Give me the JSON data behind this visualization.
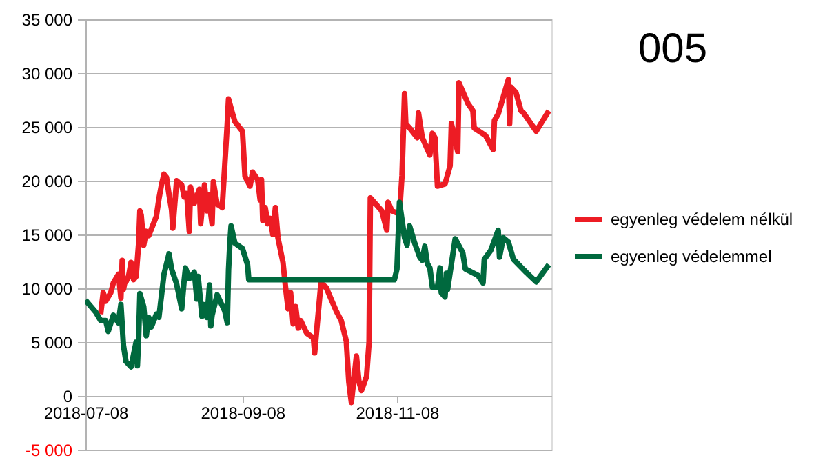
{
  "chart_data": {
    "type": "line",
    "title": "005",
    "xlim": [
      "2018-07-08",
      "2019-01-08"
    ],
    "xticks": [
      "2018-07-08",
      "2018-09-08",
      "2018-11-08"
    ],
    "ylim": [
      -5000,
      35000
    ],
    "yticks": [
      {
        "value": -5000,
        "label": "-5 000"
      },
      {
        "value": 0,
        "label": "0"
      },
      {
        "value": 5000,
        "label": "5 000"
      },
      {
        "value": 10000,
        "label": "10 000"
      },
      {
        "value": 15000,
        "label": "15 000"
      },
      {
        "value": 20000,
        "label": "20 000"
      },
      {
        "value": 25000,
        "label": "25 000"
      },
      {
        "value": 30000,
        "label": "30 000"
      },
      {
        "value": 35000,
        "label": "35 000"
      }
    ],
    "grid": "y",
    "legend": "right",
    "marker": "none",
    "line_style": "solid",
    "series": [
      {
        "name": "egyenleg védelem nélkül",
        "color": "#ed1c24",
        "x": [
          "2018-07-14",
          "2018-07-15",
          "2018-07-16",
          "2018-07-18",
          "2018-07-19",
          "2018-07-21",
          "2018-07-21T12:00",
          "2018-07-22",
          "2018-07-22T12:00",
          "2018-07-23",
          "2018-07-23T12:00",
          "2018-07-24",
          "2018-07-25",
          "2018-07-26",
          "2018-07-27",
          "2018-07-28",
          "2018-07-29",
          "2018-07-29T12:00",
          "2018-07-30",
          "2018-07-31",
          "2018-08-01",
          "2018-08-02",
          "2018-08-03",
          "2018-08-05",
          "2018-08-06",
          "2018-08-07",
          "2018-08-08",
          "2018-08-09",
          "2018-08-10",
          "2018-08-11",
          "2018-08-11T12:00",
          "2018-08-13",
          "2018-08-15",
          "2018-08-16",
          "2018-08-17",
          "2018-08-18",
          "2018-08-18T12:00",
          "2018-08-20",
          "2018-08-22",
          "2018-08-22T12:00",
          "2018-08-24",
          "2018-08-25",
          "2018-08-25T12:00",
          "2018-08-27",
          "2018-08-27T12:00",
          "2018-08-29",
          "2018-08-30",
          "2018-08-31",
          "2018-09-02",
          "2018-09-02T12:00",
          "2018-09-04",
          "2018-09-05",
          "2018-09-08",
          "2018-09-09",
          "2018-09-11",
          "2018-09-12",
          "2018-09-14",
          "2018-09-15",
          "2018-09-15T12:00",
          "2018-09-16",
          "2018-09-17",
          "2018-09-18",
          "2018-09-19",
          "2018-09-20",
          "2018-09-21",
          "2018-09-22",
          "2018-09-24",
          "2018-09-25",
          "2018-09-26",
          "2018-09-27",
          "2018-09-28",
          "2018-09-29",
          "2018-09-30",
          "2018-10-01",
          "2018-10-03",
          "2018-10-03T12:00",
          "2018-10-06",
          "2018-10-06T12:00",
          "2018-10-09",
          "2018-10-11",
          "2018-10-13",
          "2018-10-15",
          "2018-10-17",
          "2018-10-19",
          "2018-10-20",
          "2018-10-21",
          "2018-10-23",
          "2018-10-24",
          "2018-10-25",
          "2018-10-27",
          "2018-10-28",
          "2018-10-28T12:00",
          "2018-10-30",
          "2018-11-02",
          "2018-11-04",
          "2018-11-04T12:00",
          "2018-11-06",
          "2018-11-09",
          "2018-11-10",
          "2018-11-11",
          "2018-11-11T12:00",
          "2018-11-13",
          "2018-11-16",
          "2018-11-16T12:00",
          "2018-11-18",
          "2018-11-21",
          "2018-11-22",
          "2018-11-23",
          "2018-11-24",
          "2018-11-27",
          "2018-11-29",
          "2018-11-29T12:00",
          "2018-12-02",
          "2018-12-02T12:00",
          "2018-12-06",
          "2018-12-08",
          "2018-12-08T12:00",
          "2018-12-13",
          "2018-12-16",
          "2018-12-16T12:00",
          "2018-12-18",
          "2018-12-20",
          "2018-12-22",
          "2018-12-22T12:00",
          "2018-12-23",
          "2018-12-25",
          "2018-12-27",
          "2018-12-28",
          "2019-01-02",
          "2019-01-07"
        ],
        "values": [
          7600,
          9600,
          8800,
          9600,
          10500,
          11300,
          10300,
          9100,
          12600,
          9900,
          10500,
          10600,
          11100,
          12400,
          10800,
          11100,
          14200,
          17200,
          16800,
          14000,
          15300,
          14900,
          15500,
          16700,
          18300,
          19600,
          20600,
          20300,
          18700,
          17300,
          15600,
          20000,
          19600,
          18500,
          18800,
          15300,
          19400,
          17900,
          19200,
          16000,
          19600,
          17200,
          18700,
          16000,
          19900,
          17800,
          17700,
          17500,
          25300,
          27600,
          26300,
          25500,
          24600,
          20400,
          19500,
          20800,
          20100,
          18200,
          20100,
          16300,
          17500,
          16000,
          16500,
          15000,
          17500,
          14700,
          12400,
          10100,
          8100,
          9600,
          6700,
          8300,
          6300,
          7000,
          6000,
          5800,
          5400,
          4000,
          10500,
          10100,
          9000,
          7900,
          7000,
          5100,
          1300,
          -600,
          3700,
          1300,
          500,
          1800,
          5000,
          18400,
          18000,
          17200,
          15400,
          18000,
          17200,
          16900,
          20500,
          28100,
          25300,
          24900,
          24000,
          26300,
          24000,
          22400,
          24400,
          24000,
          19500,
          19700,
          21400,
          25300,
          22700,
          29100,
          27200,
          26500,
          24900,
          24200,
          22900,
          25600,
          26200,
          27800,
          29400,
          25300,
          28700,
          28200,
          26500,
          26300,
          24600,
          26500
        ]
      },
      {
        "name": "egyenleg védelemmel",
        "color": "#00693e",
        "x": [
          "2018-07-08",
          "2018-07-12",
          "2018-07-14",
          "2018-07-16",
          "2018-07-17",
          "2018-07-19",
          "2018-07-21",
          "2018-07-22",
          "2018-07-23",
          "2018-07-24",
          "2018-07-26",
          "2018-07-28",
          "2018-07-28T12:00",
          "2018-07-29",
          "2018-07-29T12:00",
          "2018-07-31",
          "2018-08-01",
          "2018-08-02",
          "2018-08-03",
          "2018-08-05",
          "2018-08-06",
          "2018-08-08",
          "2018-08-10",
          "2018-08-11",
          "2018-08-13",
          "2018-08-15",
          "2018-08-16",
          "2018-08-16T12:00",
          "2018-08-18",
          "2018-08-20",
          "2018-08-21",
          "2018-08-21T12:00",
          "2018-08-23",
          "2018-08-23T12:00",
          "2018-08-25",
          "2018-08-26",
          "2018-08-26T12:00",
          "2018-08-27",
          "2018-08-29",
          "2018-09-01",
          "2018-09-02",
          "2018-09-02T12:00",
          "2018-09-03",
          "2018-09-03T12:00",
          "2018-09-05",
          "2018-09-08",
          "2018-09-10",
          "2018-09-10T12:00",
          "2018-11-07",
          "2018-11-08",
          "2018-11-09",
          "2018-11-11",
          "2018-11-12",
          "2018-11-13",
          "2018-11-15",
          "2018-11-17",
          "2018-11-18",
          "2018-11-19",
          "2018-11-20",
          "2018-11-21",
          "2018-11-22",
          "2018-11-24",
          "2018-11-25",
          "2018-11-25T12:00",
          "2018-11-27",
          "2018-11-27T12:00",
          "2018-11-28",
          "2018-12-01",
          "2018-12-04",
          "2018-12-05",
          "2018-12-10",
          "2018-12-12",
          "2018-12-12T12:00",
          "2018-12-15",
          "2018-12-18",
          "2018-12-18T12:00",
          "2018-12-20",
          "2018-12-22",
          "2018-12-24",
          "2018-12-29",
          "2019-01-02",
          "2019-01-07"
        ],
        "values": [
          8900,
          7800,
          7000,
          7000,
          6000,
          7500,
          6800,
          8500,
          4700,
          3200,
          2700,
          5000,
          2800,
          5500,
          9500,
          8300,
          5600,
          7300,
          6400,
          7600,
          7300,
          11300,
          13200,
          11800,
          10400,
          8100,
          10800,
          11900,
          10900,
          11500,
          9000,
          11100,
          7400,
          8500,
          7300,
          10300,
          6500,
          7500,
          9400,
          7900,
          6800,
          11700,
          14100,
          15800,
          14200,
          13700,
          12200,
          10800,
          10800,
          11800,
          18000,
          14700,
          14000,
          15800,
          14200,
          12900,
          12600,
          13900,
          12300,
          11900,
          10100,
          10100,
          11900,
          9600,
          9200,
          11400,
          9900,
          14600,
          13300,
          11800,
          11200,
          10500,
          12700,
          13500,
          15400,
          12900,
          14700,
          14300,
          12700,
          11500,
          10600,
          12200
        ]
      }
    ]
  }
}
